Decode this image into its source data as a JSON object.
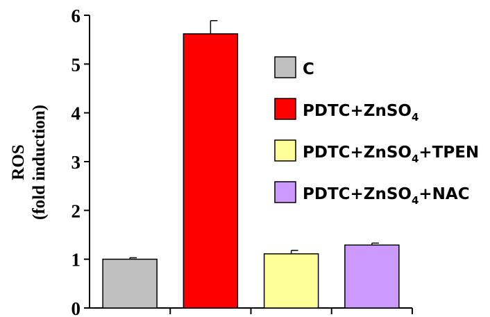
{
  "chart_data": {
    "type": "bar",
    "ylabel_line1": "ROS",
    "ylabel_line2": "(fold induction)",
    "ylim": [
      0,
      6
    ],
    "yticks": [
      "0",
      "1",
      "2",
      "3",
      "4",
      "5",
      "6"
    ],
    "grid": false,
    "legend_position": "right",
    "series": [
      {
        "legend": {
          "prefix": "C",
          "sub": "",
          "suffix": ""
        },
        "value": 1.0,
        "error": 0.03,
        "color": "#c0c0c0"
      },
      {
        "legend": {
          "prefix": "PDTC+ZnSO",
          "sub": "4",
          "suffix": ""
        },
        "value": 5.62,
        "error": 0.27,
        "color": "#ff0000"
      },
      {
        "legend": {
          "prefix": "PDTC+ZnSO",
          "sub": "4",
          "suffix": "+TPEN"
        },
        "value": 1.11,
        "error": 0.07,
        "color": "#ffff99"
      },
      {
        "legend": {
          "prefix": "PDTC+ZnSO",
          "sub": "4",
          "suffix": "+NAC"
        },
        "value": 1.29,
        "error": 0.04,
        "color": "#cc99ff"
      }
    ]
  }
}
